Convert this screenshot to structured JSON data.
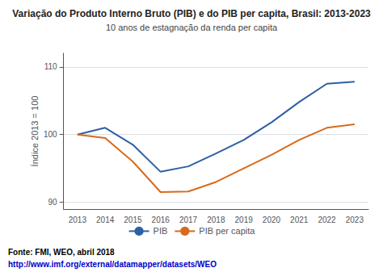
{
  "chart_data": {
    "type": "line",
    "title": "Variação do Produto Interno Bruto (PIB) e do PIB per capita, Brasil: 2013-2023",
    "subtitle": "10 anos de estagnação da renda per capita",
    "y_label": "Índice 2013 = 100",
    "annotations": [
      "Fonte: FMI, WEO, abril 2018",
      "http://www.imf.org/external/datamapper/datasets/WEO"
    ],
    "categories": [
      "2013",
      "2014",
      "2015",
      "2016",
      "2017",
      "2018",
      "2019",
      "2020",
      "2021",
      "2022",
      "2023"
    ],
    "series": [
      {
        "name": "PIB",
        "color": "#2E5FA3",
        "values": [
          100.0,
          101.0,
          98.5,
          94.5,
          95.3,
          97.2,
          99.2,
          101.8,
          104.8,
          107.5,
          107.8
        ]
      },
      {
        "name": "PIB per capita",
        "color": "#D96A1A",
        "values": [
          100.0,
          99.5,
          96.0,
          91.5,
          91.6,
          93.0,
          95.0,
          97.0,
          99.2,
          101.0,
          101.5
        ]
      }
    ],
    "ylim": [
      89,
      112
    ],
    "yticks": [
      90,
      100,
      110
    ],
    "grid": true,
    "legend": "bottom"
  }
}
